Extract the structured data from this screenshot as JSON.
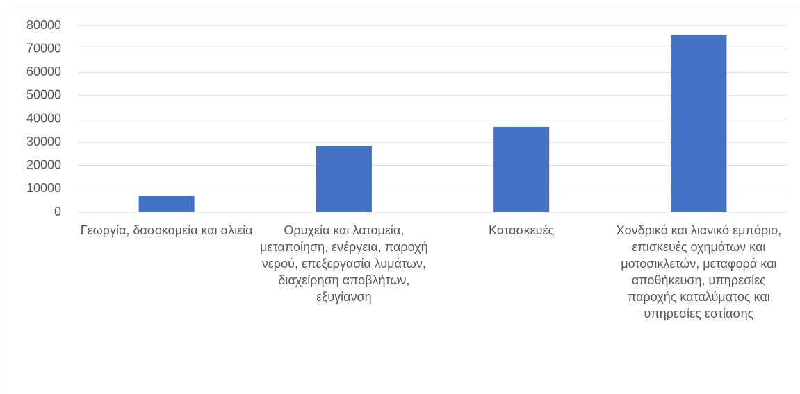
{
  "chart_data": {
    "type": "bar",
    "categories": [
      "Γεωργία, δασοκομεία και αλιεία",
      "Ορυχεία και λατομεία, μεταποίηση, ενέργεια, παροχή νερού, επεξεργασία λυμάτων, διαχείρηση αποβλήτων, εξυγίανση",
      "Κατασκευές",
      "Χονδρικό και λιανικό εμπόριο, επισκευές οχημάτων και μοτοσικλετών, μεταφορά και αποθήκευση, υπηρεσίες παροχής καταλύματος και υπηρεσίες εστίασης"
    ],
    "values": [
      7000,
      28300,
      36600,
      75900
    ],
    "color": "#4472c4",
    "ylim": [
      0,
      80000
    ],
    "yticks": [
      0,
      10000,
      20000,
      30000,
      40000,
      50000,
      60000,
      70000,
      80000
    ],
    "grid": true
  }
}
